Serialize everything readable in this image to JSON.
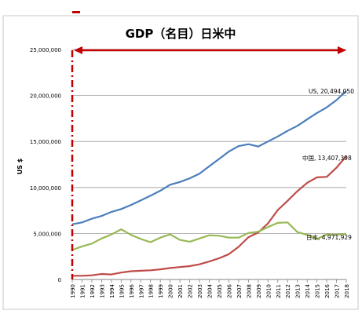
{
  "chart_data": {
    "type": "line",
    "title": "GDP（名目）日米中",
    "ylabel": "US $",
    "xlabel": "",
    "ylim": [
      0,
      25000000
    ],
    "y_ticks": [
      "0",
      "5,000,000",
      "10,000,000",
      "15,000,000",
      "20,000,000",
      "25,000,000"
    ],
    "y_tick_values": [
      0,
      5000000,
      10000000,
      15000000,
      20000000,
      25000000
    ],
    "grid": true,
    "legend": "none",
    "x": [
      1990,
      1991,
      1992,
      1993,
      1994,
      1995,
      1996,
      1997,
      1998,
      1999,
      2000,
      2001,
      2002,
      2003,
      2004,
      2005,
      2006,
      2007,
      2008,
      2009,
      2010,
      2011,
      2012,
      2013,
      2014,
      2015,
      2016,
      2017,
      2018
    ],
    "x_labels": [
      "1990",
      "1991",
      "1992",
      "1993",
      "1994",
      "1995",
      "1996",
      "1997",
      "1998",
      "1999",
      "2000",
      "2001",
      "2002",
      "2003",
      "2004",
      "2005",
      "2006",
      "2007",
      "2008",
      "2009",
      "2010",
      "2011",
      "2012",
      "2013",
      "2014",
      "2015",
      "2016",
      "2017",
      "2018"
    ],
    "series": [
      {
        "name": "US",
        "color": "#4a7ebb",
        "values": [
          6000000,
          6200000,
          6600000,
          6900000,
          7350000,
          7650000,
          8100000,
          8600000,
          9100000,
          9650000,
          10300000,
          10600000,
          11000000,
          11500000,
          12300000,
          13100000,
          13900000,
          14500000,
          14700000,
          14450000,
          15000000,
          15550000,
          16150000,
          16700000,
          17400000,
          18100000,
          18700000,
          19500000,
          20494050
        ],
        "end_label": "US, 20,494,050"
      },
      {
        "name": "中国",
        "color": "#be4b48",
        "values": [
          400000,
          400000,
          450000,
          600000,
          550000,
          750000,
          900000,
          950000,
          1000000,
          1100000,
          1250000,
          1350000,
          1450000,
          1650000,
          1950000,
          2300000,
          2750000,
          3550000,
          4600000,
          5100000,
          6100000,
          7550000,
          8550000,
          9600000,
          10500000,
          11100000,
          11150000,
          12150000,
          13407398
        ],
        "end_label": "中国, 13,407,398"
      },
      {
        "name": "日本",
        "color": "#98b954",
        "values": [
          3200000,
          3600000,
          3900000,
          4450000,
          4900000,
          5450000,
          4850000,
          4400000,
          4050000,
          4550000,
          4900000,
          4300000,
          4100000,
          4450000,
          4800000,
          4750000,
          4550000,
          4550000,
          5050000,
          5200000,
          5700000,
          6150000,
          6200000,
          5150000,
          4850000,
          4400000,
          4900000,
          4850000,
          4971929
        ],
        "end_label": "日本, 4,971,929"
      }
    ],
    "annotations": {
      "arrow_color": "#c00000"
    }
  }
}
